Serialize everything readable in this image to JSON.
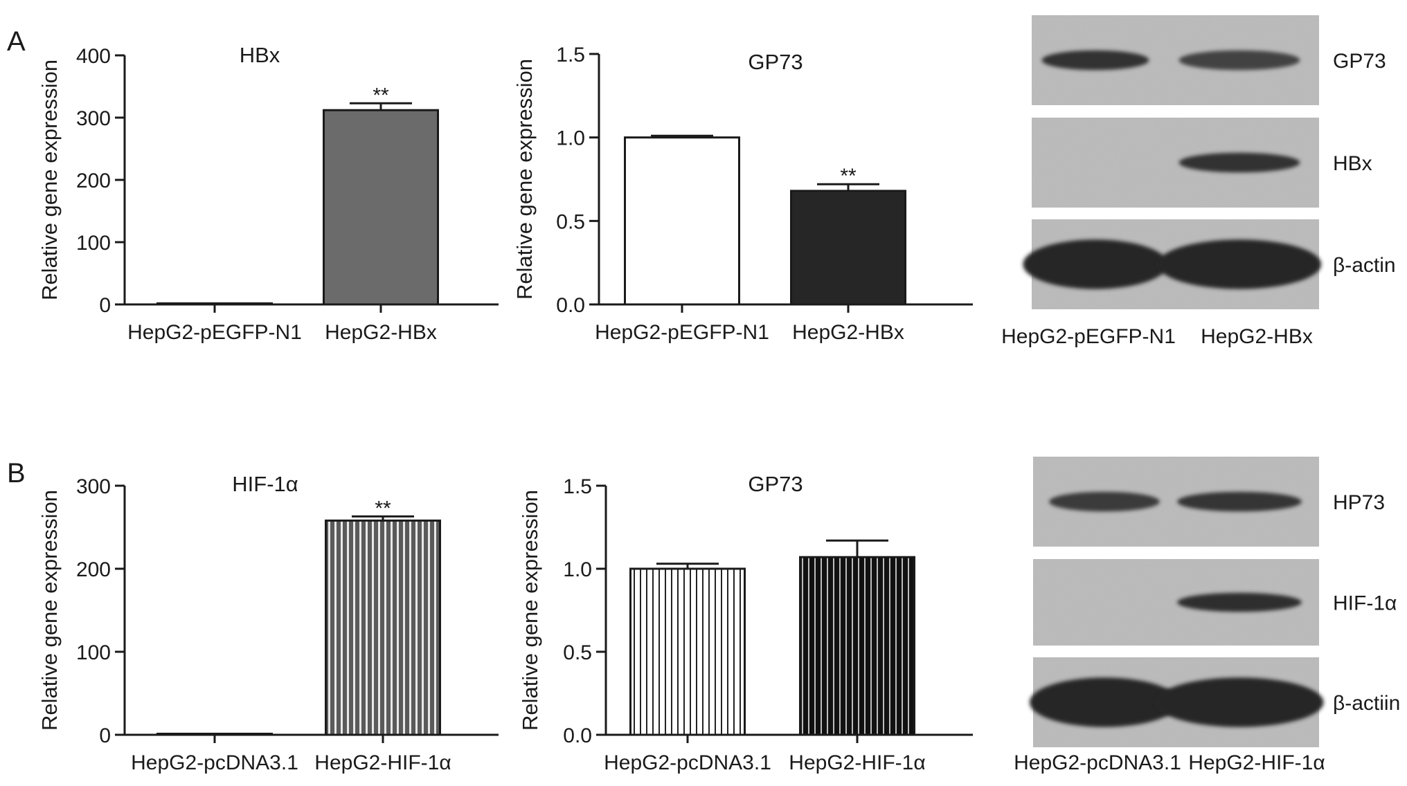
{
  "panels": [
    {
      "letter": "A"
    },
    {
      "letter": "B"
    }
  ],
  "chart_data": [
    {
      "type": "bar",
      "panel": "A",
      "title": "HBx",
      "ylabel": "Relative gene expression",
      "xlabel": "",
      "categories": [
        "HepG2-pEGFP-N1",
        "HepG2-HBx"
      ],
      "values": [
        1,
        312
      ],
      "errors": [
        0,
        11
      ],
      "significance": [
        "",
        "**"
      ],
      "bar_fills": [
        "#ffffff",
        "#6b6b6b"
      ],
      "bar_pattern": [
        "solid",
        "solid"
      ],
      "ylim": [
        0,
        400
      ],
      "yticks": [
        0,
        100,
        200,
        300,
        400
      ],
      "ytick_labels": [
        "0",
        "100",
        "200",
        "300",
        "400"
      ]
    },
    {
      "type": "bar",
      "panel": "A",
      "title": "GP73",
      "ylabel": "Relative gene expression",
      "xlabel": "",
      "categories": [
        "HepG2-pEGFP-N1",
        "HepG2-HBx"
      ],
      "values": [
        1.0,
        0.68
      ],
      "errors": [
        0.01,
        0.04
      ],
      "significance": [
        "",
        "**"
      ],
      "bar_fills": [
        "#ffffff",
        "#262626"
      ],
      "bar_pattern": [
        "solid",
        "solid"
      ],
      "ylim": [
        0,
        1.5
      ],
      "yticks": [
        0,
        0.5,
        1.0,
        1.5
      ],
      "ytick_labels": [
        "0.0",
        "0.5",
        "1.0",
        "1.5"
      ]
    },
    {
      "type": "bar",
      "panel": "B",
      "title": "HIF-1α",
      "ylabel": "Relative gene expression",
      "xlabel": "",
      "categories": [
        "HepG2-pcDNA3.1",
        "HepG2-HIF-1α"
      ],
      "values": [
        1,
        258
      ],
      "errors": [
        0,
        5
      ],
      "significance": [
        "",
        "**"
      ],
      "bar_fills": [
        "#ffffff",
        "#5a5a5a"
      ],
      "bar_pattern": [
        "solid",
        "stripes"
      ],
      "ylim": [
        0,
        300
      ],
      "yticks": [
        0,
        100,
        200,
        300
      ],
      "ytick_labels": [
        "0",
        "100",
        "200",
        "300"
      ]
    },
    {
      "type": "bar",
      "panel": "B",
      "title": "GP73",
      "ylabel": "Relative gene expression",
      "xlabel": "",
      "categories": [
        "HepG2-pcDNA3.1",
        "HepG2-HIF-1α"
      ],
      "values": [
        1.0,
        1.07
      ],
      "errors": [
        0.03,
        0.1
      ],
      "significance": [
        "",
        ""
      ],
      "bar_fills": [
        "#ffffff",
        "#111111"
      ],
      "bar_pattern": [
        "stripes",
        "stripes"
      ],
      "ylim": [
        0,
        1.5
      ],
      "yticks": [
        0,
        0.5,
        1.0,
        1.5
      ],
      "ytick_labels": [
        "0.0",
        "0.5",
        "1.0",
        "1.5"
      ]
    }
  ],
  "blots": [
    {
      "panel": "A",
      "lane_labels": [
        "HepG2-pEGFP-N1",
        "HepG2-HBx"
      ],
      "rows": [
        {
          "label": "GP73",
          "intensities": [
            0.9,
            0.7
          ]
        },
        {
          "label": "HBx",
          "intensities": [
            0,
            0.9
          ]
        },
        {
          "label": "β-actin",
          "intensities": [
            1.0,
            1.0
          ]
        }
      ]
    },
    {
      "panel": "B",
      "lane_labels": [
        "HepG2-pcDNA3.1",
        "HepG2-HIF-1α"
      ],
      "rows": [
        {
          "label": "HP73",
          "intensities": [
            0.8,
            0.85
          ]
        },
        {
          "label": "HIF-1α",
          "intensities": [
            0,
            0.95
          ]
        },
        {
          "label": "β-actiin",
          "intensities": [
            1.0,
            1.0
          ]
        }
      ]
    }
  ]
}
